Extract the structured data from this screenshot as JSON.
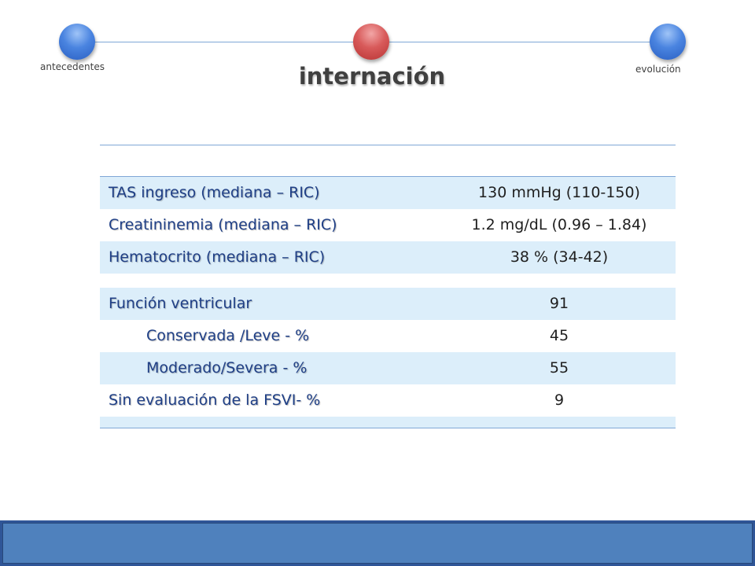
{
  "timeline": {
    "nodes": [
      {
        "label": "antecedentes",
        "color": "blue"
      },
      {
        "label": "internación",
        "color": "red"
      },
      {
        "label": "evolución",
        "color": "blue"
      }
    ],
    "active_title": "internación"
  },
  "colors": {
    "accent_blue": "#4a84e0",
    "active_red": "#d85a5a",
    "label_text": "#1f3f86",
    "row_shade": "#dceefa",
    "bottom_bar": "#4f81bd"
  },
  "table": {
    "group1": [
      {
        "label": "TAS ingreso (mediana – RIC)",
        "value": "130 mmHg (110-150)"
      },
      {
        "label": "Creatininemia (mediana – RIC)",
        "value": "1.2 mg/dL (0.96 – 1.84)"
      },
      {
        "label": "Hematocrito (mediana – RIC)",
        "value": "38 % (34-42)"
      }
    ],
    "group2": [
      {
        "label": "Función ventricular",
        "value": "91"
      },
      {
        "label": "Conservada /Leve - %",
        "value": "45"
      },
      {
        "label": "Moderado/Severa - %",
        "value": "55"
      },
      {
        "label": "Sin evaluación de la FSVI- %",
        "value": "9"
      }
    ]
  }
}
